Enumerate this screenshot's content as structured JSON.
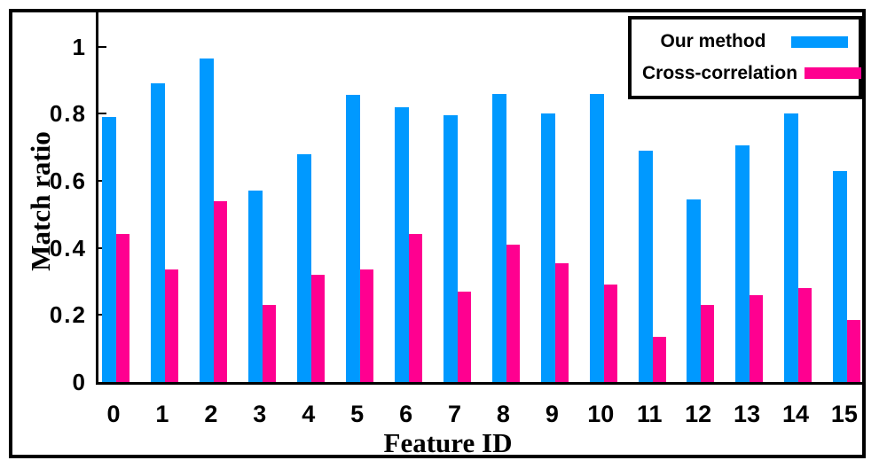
{
  "figure": {
    "background": "#ffffff",
    "border_color": "#000000"
  },
  "chart_data": {
    "type": "bar",
    "title": "",
    "xlabel": "Feature ID",
    "ylabel": "Match ratio",
    "categories": [
      "0",
      "1",
      "2",
      "3",
      "4",
      "5",
      "6",
      "7",
      "8",
      "9",
      "10",
      "11",
      "12",
      "13",
      "14",
      "15"
    ],
    "series": [
      {
        "name": "Our method",
        "color": "#0099ff",
        "values": [
          0.79,
          0.89,
          0.965,
          0.57,
          0.68,
          0.855,
          0.82,
          0.795,
          0.86,
          0.8,
          0.86,
          0.69,
          0.545,
          0.705,
          0.8,
          0.63
        ]
      },
      {
        "name": "Cross-correlation",
        "color": "#ff0090",
        "values": [
          0.44,
          0.335,
          0.54,
          0.23,
          0.32,
          0.335,
          0.44,
          0.27,
          0.41,
          0.355,
          0.29,
          0.135,
          0.23,
          0.26,
          0.28,
          0.185
        ]
      }
    ],
    "y_ticks": [
      "0",
      "0.2",
      "0.4",
      "0.6",
      "0.8",
      "1"
    ],
    "ylim": [
      0,
      1.1
    ],
    "grid": false,
    "legend_position": "top-right",
    "axis_color": "#000000",
    "tick_direction": "in"
  }
}
